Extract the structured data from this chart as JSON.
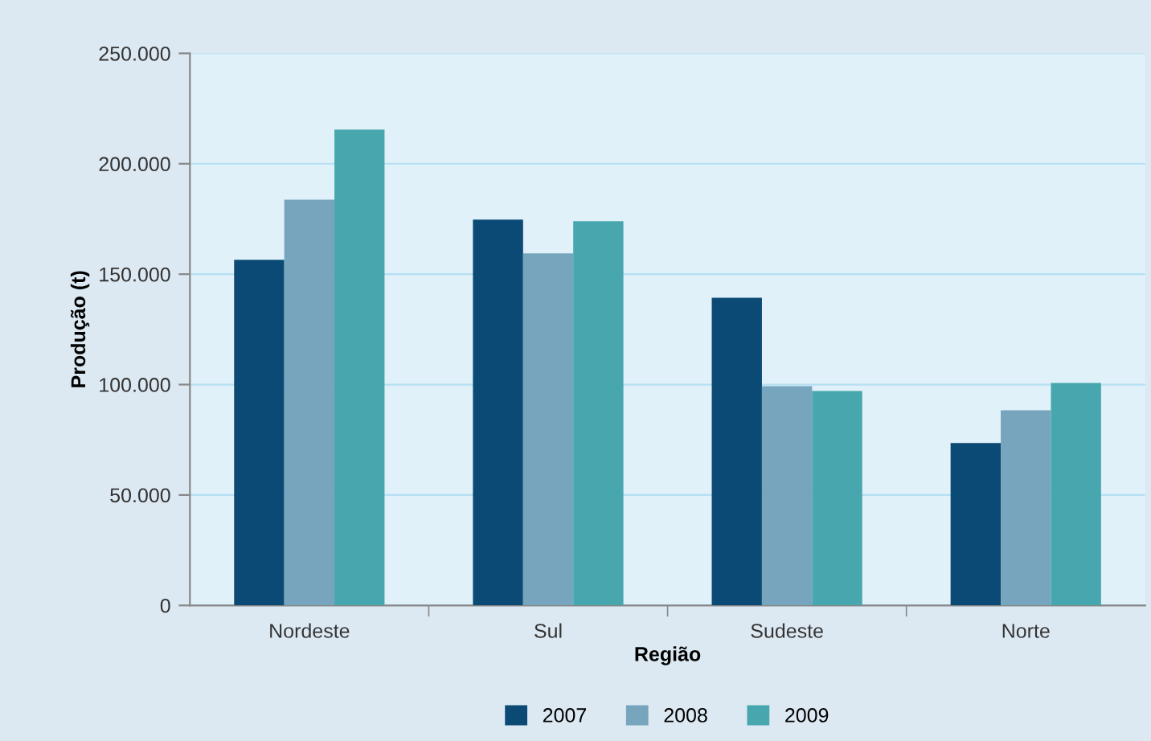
{
  "chart_data": {
    "type": "bar",
    "xlabel": "Região",
    "ylabel": "Produção (t)",
    "categories": [
      "Nordeste",
      "Sul",
      "Sudeste",
      "Norte"
    ],
    "series": [
      {
        "name": "2007",
        "color": "#0b4a75",
        "values": [
          156500,
          174700,
          139300,
          73500
        ]
      },
      {
        "name": "2008",
        "color": "#76a5bd",
        "values": [
          183700,
          159400,
          99300,
          88400
        ]
      },
      {
        "name": "2009",
        "color": "#48a7ae",
        "values": [
          215500,
          174000,
          97100,
          100700
        ]
      }
    ],
    "ylim": [
      0,
      250000
    ],
    "yticks": [
      {
        "value": 0,
        "label": "0"
      },
      {
        "value": 50000,
        "label": "50.000"
      },
      {
        "value": 100000,
        "label": "100.000"
      },
      {
        "value": 150000,
        "label": "150.000"
      },
      {
        "value": 200000,
        "label": "200.000"
      },
      {
        "value": 250000,
        "label": "250.000"
      }
    ],
    "grid": "y",
    "legend": "bottom"
  }
}
